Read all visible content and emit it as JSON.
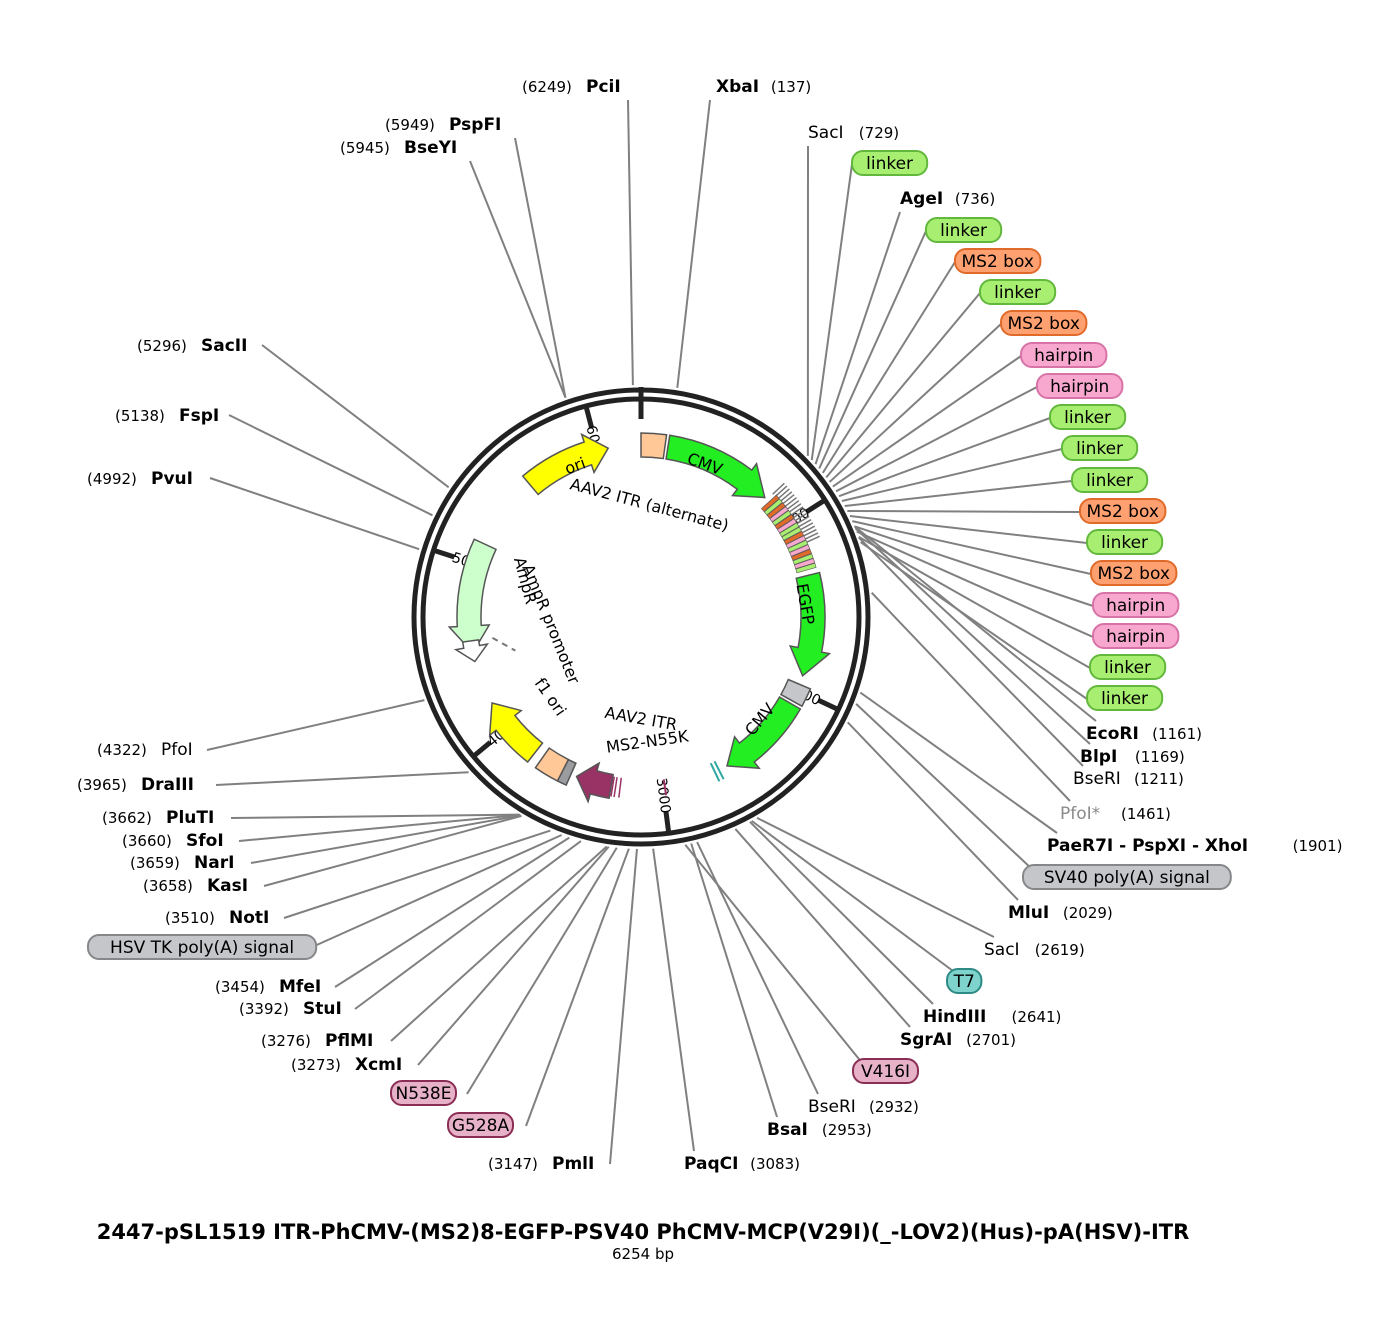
{
  "title": "2447-pSL1519 ITR-PhCMV-(MS2)8-EGFP-PSV40 PhCMV-MCP(V29I)(_-LOV2)(Hus)-pA(HSV)-ITR",
  "size_label": "6254 bp",
  "ticks": [
    "1000",
    "2000",
    "3000",
    "4000",
    "5000",
    "6000"
  ],
  "colors": {
    "linker": "#a8ee70",
    "ms2": "#ffa070",
    "hairpin": "#f8a8cf",
    "gray": "#c4c6c9",
    "teal": "#7ed3cc",
    "mutation": "#e7b1c7",
    "cmv": "#22ee22",
    "ori": "#ffff00",
    "itr": "#ffc896",
    "ampr": "#ccffcc",
    "ms2n55k": "#993366",
    "sv40": "#a4a6aa"
  },
  "features": {
    "ori": "ori",
    "cmv1": "CMV",
    "itr1": "AAV2 ITR (alternate)",
    "egfp": "EGFP",
    "cmv2": "CMV",
    "itr2": "AAV2 ITR",
    "ms2n55k": "MS2-N55K",
    "f1ori": "f1 ori",
    "ampr": "AmpR",
    "amprprom": "AmpR promoter"
  },
  "right_list": [
    {
      "kind": "site",
      "name": "SacI",
      "pos": "(729)",
      "bold": false
    },
    {
      "kind": "pill",
      "label": "linker",
      "color": "linker"
    },
    {
      "kind": "site",
      "name": "AgeI",
      "pos": "(736)",
      "bold": true
    },
    {
      "kind": "pill",
      "label": "linker",
      "color": "linker"
    },
    {
      "kind": "pill",
      "label": "MS2 box",
      "color": "ms2"
    },
    {
      "kind": "pill",
      "label": "linker",
      "color": "linker"
    },
    {
      "kind": "pill",
      "label": "MS2 box",
      "color": "ms2"
    },
    {
      "kind": "pill",
      "label": "hairpin",
      "color": "hairpin"
    },
    {
      "kind": "pill",
      "label": "hairpin",
      "color": "hairpin"
    },
    {
      "kind": "pill",
      "label": "linker",
      "color": "linker"
    },
    {
      "kind": "pill",
      "label": "linker",
      "color": "linker"
    },
    {
      "kind": "pill",
      "label": "linker",
      "color": "linker"
    },
    {
      "kind": "pill",
      "label": "MS2 box",
      "color": "ms2"
    },
    {
      "kind": "pill",
      "label": "linker",
      "color": "linker"
    },
    {
      "kind": "pill",
      "label": "MS2 box",
      "color": "ms2"
    },
    {
      "kind": "pill",
      "label": "hairpin",
      "color": "hairpin"
    },
    {
      "kind": "pill",
      "label": "hairpin",
      "color": "hairpin"
    },
    {
      "kind": "pill",
      "label": "linker",
      "color": "linker"
    },
    {
      "kind": "pill",
      "label": "linker",
      "color": "linker"
    }
  ],
  "lower_right": [
    {
      "kind": "site",
      "name": "EcoRI",
      "pos": "(1161)",
      "bold": true
    },
    {
      "kind": "site",
      "name": "BlpI",
      "pos": "(1169)",
      "bold": true
    },
    {
      "kind": "site",
      "name": "BseRI",
      "pos": "(1211)",
      "bold": false
    },
    {
      "kind": "site",
      "name": "PfoI*",
      "pos": "(1461)",
      "bold": false,
      "gray": true
    },
    {
      "kind": "site",
      "name": "PaeR7I - PspXI - XhoI",
      "pos": "(1901)",
      "bold": true
    },
    {
      "kind": "pill",
      "label": "SV40 poly(A) signal",
      "color": "gray"
    },
    {
      "kind": "site",
      "name": "MluI",
      "pos": "(2029)",
      "bold": true
    },
    {
      "kind": "site",
      "name": "SacI",
      "pos": "(2619)",
      "bold": false
    },
    {
      "kind": "pill",
      "label": "T7",
      "color": "teal"
    },
    {
      "kind": "site",
      "name": "HindIII",
      "pos": "(2641)",
      "bold": true
    },
    {
      "kind": "site",
      "name": "SgrAI",
      "pos": "(2701)",
      "bold": true
    },
    {
      "kind": "pill",
      "label": "V416I",
      "color": "mutation"
    },
    {
      "kind": "site",
      "name": "BseRI",
      "pos": "(2932)",
      "bold": false
    },
    {
      "kind": "site",
      "name": "BsaI",
      "pos": "(2953)",
      "bold": true
    },
    {
      "kind": "site",
      "name": "PaqCI",
      "pos": "(3083)",
      "bold": true
    }
  ],
  "lower_left": [
    {
      "kind": "site",
      "name": "PmlI",
      "pos": "(3147)",
      "bold": true
    },
    {
      "kind": "pill",
      "label": "G528A",
      "color": "mutation"
    },
    {
      "kind": "pill",
      "label": "N538E",
      "color": "mutation"
    },
    {
      "kind": "site",
      "name": "XcmI",
      "pos": "(3273)",
      "bold": true
    },
    {
      "kind": "site",
      "name": "PflMI",
      "pos": "(3276)",
      "bold": true
    },
    {
      "kind": "site",
      "name": "StuI",
      "pos": "(3392)",
      "bold": true
    },
    {
      "kind": "site",
      "name": "MfeI",
      "pos": "(3454)",
      "bold": true
    },
    {
      "kind": "pill",
      "label": "HSV TK poly(A) signal",
      "color": "gray"
    },
    {
      "kind": "site",
      "name": "NotI",
      "pos": "(3510)",
      "bold": true
    },
    {
      "kind": "site",
      "name": "KasI",
      "pos": "(3658)",
      "bold": true
    },
    {
      "kind": "site",
      "name": "NarI",
      "pos": "(3659)",
      "bold": true
    },
    {
      "kind": "site",
      "name": "SfoI",
      "pos": "(3660)",
      "bold": true
    },
    {
      "kind": "site",
      "name": "PluTI",
      "pos": "(3662)",
      "bold": true
    },
    {
      "kind": "site",
      "name": "DraIII",
      "pos": "(3965)",
      "bold": true
    },
    {
      "kind": "site",
      "name": "PfoI",
      "pos": "(4322)",
      "bold": false
    }
  ],
  "upper_left": [
    {
      "kind": "site",
      "name": "PvuI",
      "pos": "(4992)",
      "bold": true
    },
    {
      "kind": "site",
      "name": "FspI",
      "pos": "(5138)",
      "bold": true
    },
    {
      "kind": "site",
      "name": "SacII",
      "pos": "(5296)",
      "bold": true
    },
    {
      "kind": "site",
      "name": "BseYI",
      "pos": "(5945)",
      "bold": true
    },
    {
      "kind": "site",
      "name": "PspFI",
      "pos": "(5949)",
      "bold": true
    },
    {
      "kind": "site",
      "name": "PciI",
      "pos": "(6249)",
      "bold": true
    },
    {
      "kind": "site",
      "name": "XbaI",
      "pos": "(137)",
      "bold": true
    }
  ]
}
